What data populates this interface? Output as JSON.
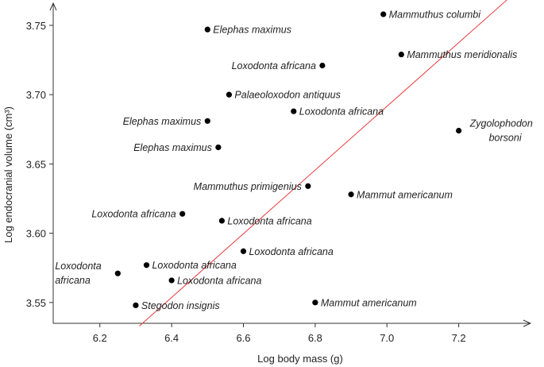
{
  "chart_data": {
    "type": "scatter",
    "title": "",
    "xlabel": "Log body mass (g)",
    "ylabel": "Log endocranial volume (cm³)",
    "xlim": [
      6.07,
      7.4
    ],
    "ylim": [
      3.535,
      3.766
    ],
    "xticks": [
      6.2,
      6.4,
      6.6,
      6.8,
      7.0,
      7.2
    ],
    "xtick_labels": [
      "6.2",
      "6.4",
      "6.6",
      "6.8",
      "7.0",
      "7.2"
    ],
    "yticks": [
      3.55,
      3.6,
      3.65,
      3.7,
      3.75
    ],
    "ytick_labels": [
      "3.55",
      "3.60",
      "3.65",
      "3.70",
      "3.75"
    ],
    "grid": false,
    "point_color": "#000000",
    "regression_color": "#e8393a",
    "regression_line": {
      "x": [
        6.31,
        7.35
      ],
      "y": [
        3.533,
        3.772
      ]
    },
    "points": [
      {
        "x": 6.99,
        "y": 3.758,
        "label": "Mammuthus columbi",
        "anchor": "right"
      },
      {
        "x": 6.5,
        "y": 3.747,
        "label": "Elephas maximus",
        "anchor": "right"
      },
      {
        "x": 6.82,
        "y": 3.721,
        "label": "Loxodonta africana",
        "anchor": "left"
      },
      {
        "x": 7.04,
        "y": 3.729,
        "label": "Mammuthus meridionalis",
        "anchor": "right"
      },
      {
        "x": 6.56,
        "y": 3.7,
        "label": "Palaeoloxodon antiquus",
        "anchor": "right"
      },
      {
        "x": 6.74,
        "y": 3.688,
        "label": "Loxodonta africana",
        "anchor": "right"
      },
      {
        "x": 6.5,
        "y": 3.681,
        "label": "Elephas maximus",
        "anchor": "left"
      },
      {
        "x": 7.2,
        "y": 3.674,
        "label": "Zygolophodon borsoni",
        "anchor": "right-twoline"
      },
      {
        "x": 6.53,
        "y": 3.662,
        "label": "Elephas maximus",
        "anchor": "left"
      },
      {
        "x": 6.78,
        "y": 3.634,
        "label": "Mammuthus primigenius",
        "anchor": "left"
      },
      {
        "x": 6.9,
        "y": 3.628,
        "label": "Mammut americanum",
        "anchor": "right"
      },
      {
        "x": 6.43,
        "y": 3.614,
        "label": "Loxodonta africana",
        "anchor": "left"
      },
      {
        "x": 6.54,
        "y": 3.609,
        "label": "Loxodonta africana",
        "anchor": "right"
      },
      {
        "x": 6.6,
        "y": 3.587,
        "label": "Loxodonta africana",
        "anchor": "right"
      },
      {
        "x": 6.33,
        "y": 3.577,
        "label": "Loxodonta africana",
        "anchor": "right"
      },
      {
        "x": 6.25,
        "y": 3.571,
        "label": "Loxodonta africana",
        "anchor": "left-twoline"
      },
      {
        "x": 6.4,
        "y": 3.566,
        "label": "Loxodonta africana",
        "anchor": "right"
      },
      {
        "x": 6.3,
        "y": 3.548,
        "label": "Stegodon insignis",
        "anchor": "right"
      },
      {
        "x": 6.8,
        "y": 3.55,
        "label": "Mammut americanum",
        "anchor": "right"
      }
    ]
  }
}
